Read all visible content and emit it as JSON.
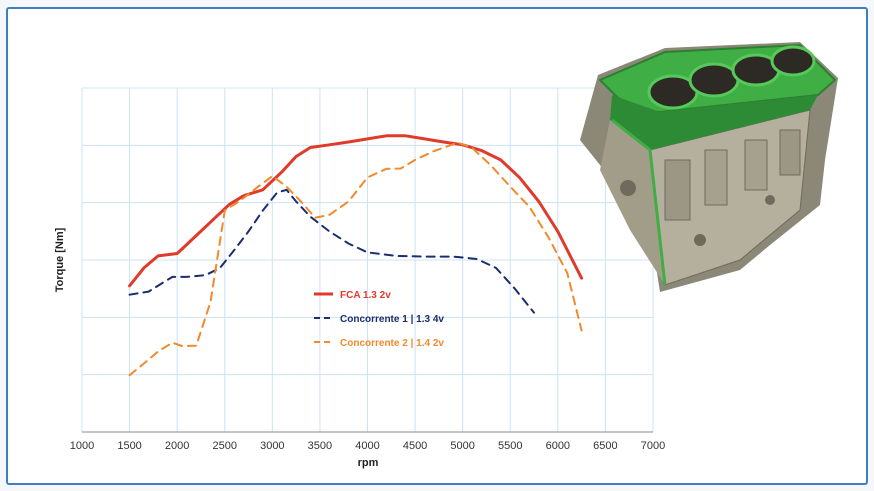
{
  "chart_data": {
    "type": "line",
    "title": "",
    "xlabel": "rpm",
    "ylabel": "Torque [Nm]",
    "xlim": [
      1000,
      7000
    ],
    "x_ticks": [
      "1000",
      "1500",
      "2000",
      "2500",
      "3000",
      "3500",
      "4000",
      "4500",
      "5000",
      "5500",
      "6000",
      "6500",
      "7000"
    ],
    "y_tick_labels_shown": false,
    "grid": true,
    "legend_position": "center",
    "series": [
      {
        "name": "FCA 1.3 2v",
        "color": "#e03a2a",
        "dash": "solid",
        "points": [
          [
            1500,
            0.575
          ],
          [
            1650,
            0.523
          ],
          [
            1800,
            0.488
          ],
          [
            2000,
            0.481
          ],
          [
            2200,
            0.429
          ],
          [
            2400,
            0.377
          ],
          [
            2550,
            0.338
          ],
          [
            2700,
            0.313
          ],
          [
            2900,
            0.296
          ],
          [
            3100,
            0.244
          ],
          [
            3250,
            0.199
          ],
          [
            3400,
            0.173
          ],
          [
            3600,
            0.165
          ],
          [
            3800,
            0.157
          ],
          [
            4000,
            0.148
          ],
          [
            4200,
            0.139
          ],
          [
            4400,
            0.139
          ],
          [
            4600,
            0.148
          ],
          [
            4800,
            0.157
          ],
          [
            5000,
            0.165
          ],
          [
            5200,
            0.182
          ],
          [
            5400,
            0.209
          ],
          [
            5600,
            0.261
          ],
          [
            5800,
            0.33
          ],
          [
            6000,
            0.417
          ],
          [
            6250,
            0.553
          ]
        ]
      },
      {
        "name": "Concorrente 1 | 1.3 4v",
        "color": "#1a2d6e",
        "dash": "dashed",
        "points": [
          [
            1500,
            0.601
          ],
          [
            1700,
            0.592
          ],
          [
            1850,
            0.566
          ],
          [
            1950,
            0.549
          ],
          [
            2100,
            0.549
          ],
          [
            2300,
            0.544
          ],
          [
            2450,
            0.523
          ],
          [
            2600,
            0.471
          ],
          [
            2750,
            0.417
          ],
          [
            2900,
            0.356
          ],
          [
            3050,
            0.304
          ],
          [
            3150,
            0.296
          ],
          [
            3250,
            0.33
          ],
          [
            3400,
            0.374
          ],
          [
            3600,
            0.417
          ],
          [
            3800,
            0.452
          ],
          [
            4000,
            0.478
          ],
          [
            4300,
            0.488
          ],
          [
            4600,
            0.49
          ],
          [
            4900,
            0.49
          ],
          [
            5150,
            0.497
          ],
          [
            5350,
            0.523
          ],
          [
            5550,
            0.584
          ],
          [
            5750,
            0.653
          ]
        ]
      },
      {
        "name": "Concorrente 2 | 1.4 2v",
        "color": "#f08a2c",
        "dash": "dashed",
        "points": [
          [
            1500,
            0.835
          ],
          [
            1650,
            0.801
          ],
          [
            1800,
            0.766
          ],
          [
            1950,
            0.74
          ],
          [
            2050,
            0.75
          ],
          [
            2200,
            0.749
          ],
          [
            2350,
            0.622
          ],
          [
            2500,
            0.356
          ],
          [
            2650,
            0.33
          ],
          [
            2850,
            0.287
          ],
          [
            3000,
            0.256
          ],
          [
            3150,
            0.287
          ],
          [
            3300,
            0.33
          ],
          [
            3450,
            0.377
          ],
          [
            3600,
            0.369
          ],
          [
            3800,
            0.33
          ],
          [
            4000,
            0.26
          ],
          [
            4200,
            0.235
          ],
          [
            4350,
            0.234
          ],
          [
            4500,
            0.209
          ],
          [
            4700,
            0.183
          ],
          [
            4950,
            0.159
          ],
          [
            5100,
            0.174
          ],
          [
            5300,
            0.226
          ],
          [
            5500,
            0.287
          ],
          [
            5700,
            0.345
          ],
          [
            5900,
            0.433
          ],
          [
            6100,
            0.538
          ],
          [
            6250,
            0.705
          ]
        ]
      }
    ]
  }
}
